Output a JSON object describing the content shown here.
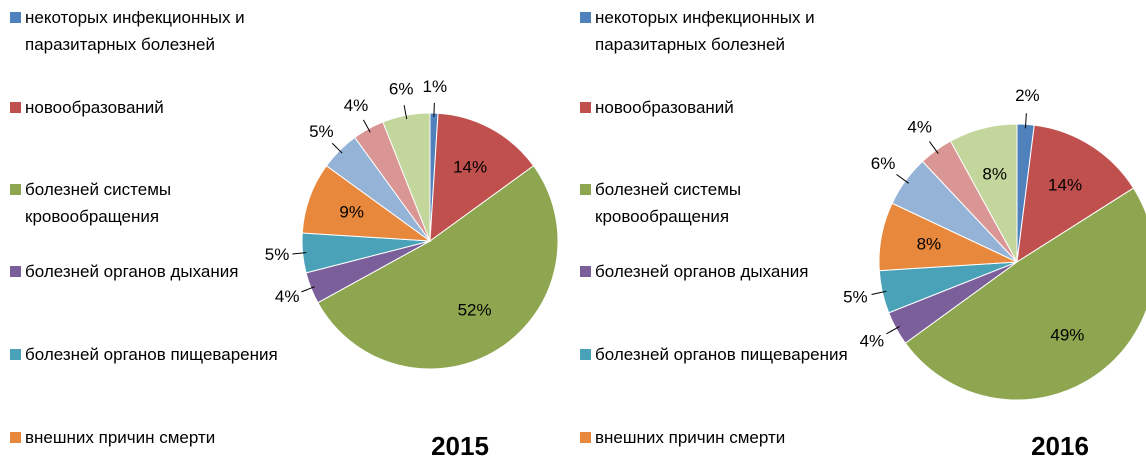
{
  "chart_data": [
    {
      "type": "pie",
      "title": "2015",
      "categories": [
        "некоторых инфекционных и паразитарных болезней",
        "новообразований",
        "болезней системы кровообращения",
        "болезней органов дыхания",
        "болезней органов пищеварения",
        "внешних причин смерти",
        null,
        null,
        null
      ],
      "values": [
        1,
        14,
        52,
        4,
        5,
        9,
        5,
        4,
        6
      ],
      "value_labels": [
        "1%",
        "14%",
        "52%",
        "4%",
        "5%",
        "9%",
        "5%",
        "4%",
        "6%"
      ],
      "colors": [
        "#4f81bd",
        "#c0504d",
        "#8da64f",
        "#7b5f9a",
        "#4aa2b8",
        "#e8883c",
        "#95b3d7",
        "#d99694",
        "#c3d69b"
      ]
    },
    {
      "type": "pie",
      "title": "2016",
      "categories": [
        "некоторых инфекционных и паразитарных болезней",
        "новообразований",
        "болезней системы кровообращения",
        "болезней органов дыхания",
        "болезней органов пищеварения",
        "внешних причин смерти",
        null,
        null,
        null
      ],
      "values": [
        2,
        14,
        49,
        4,
        5,
        8,
        6,
        4,
        8
      ],
      "value_labels": [
        "2%",
        "14%",
        "49%",
        "4%",
        "5%",
        "8%",
        "6%",
        "4%",
        "8%"
      ],
      "colors": [
        "#4f81bd",
        "#c0504d",
        "#8da64f",
        "#7b5f9a",
        "#4aa2b8",
        "#e8883c",
        "#95b3d7",
        "#d99694",
        "#c3d69b"
      ]
    }
  ]
}
